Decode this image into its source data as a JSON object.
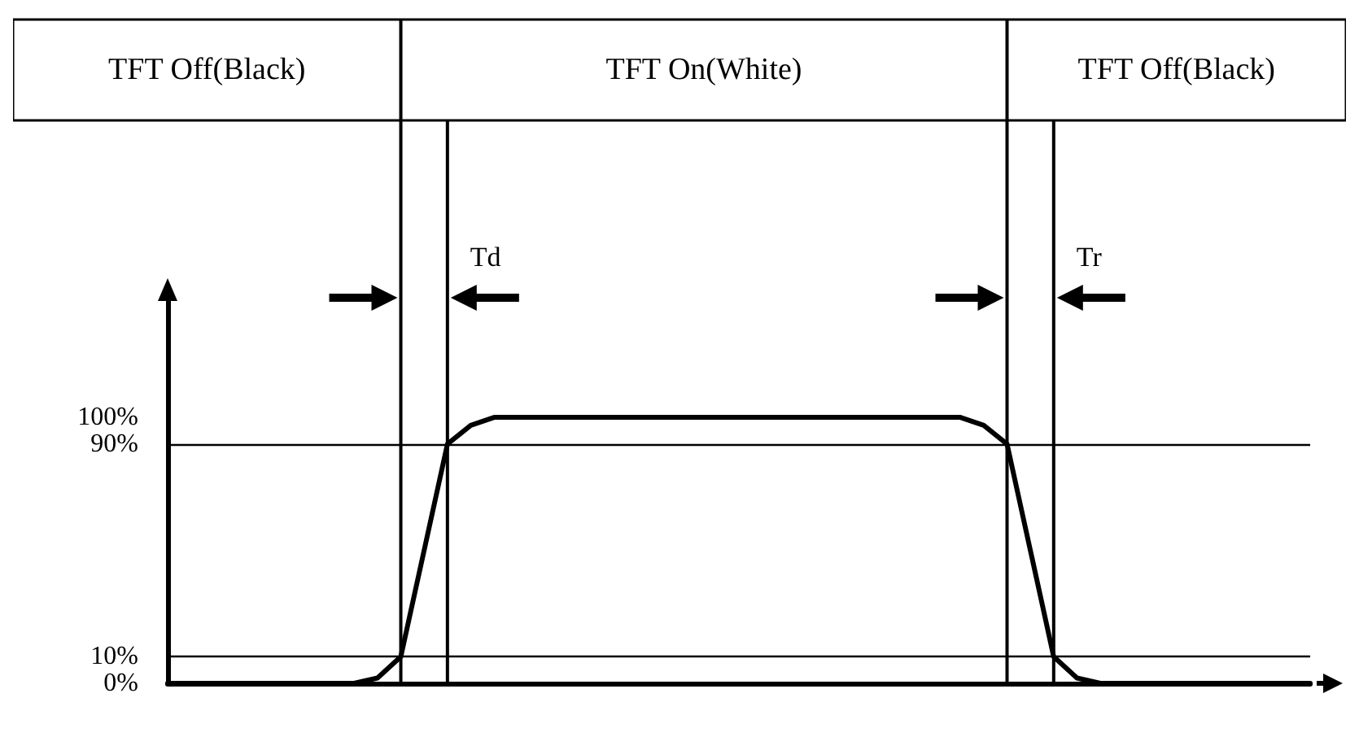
{
  "chart_data": {
    "type": "line",
    "annotations": [
      "TFT Off(Black)",
      "TFT On(White)",
      "TFT Off(Black)",
      "Td",
      "Tr"
    ],
    "categories": [
      null,
      null,
      null,
      null,
      null,
      null,
      null,
      null,
      null,
      null,
      null,
      null,
      null,
      null,
      null,
      null,
      null,
      null,
      null,
      null,
      null,
      null,
      null,
      null,
      null,
      null,
      null,
      null,
      null,
      null,
      null,
      null,
      null,
      null,
      null,
      null,
      null,
      null,
      null,
      null,
      null,
      null,
      null,
      null,
      null,
      null,
      null,
      null,
      null,
      null
    ],
    "series": [
      {
        "color": "#000000",
        "values": [
          0,
          0,
          0,
          0,
          0,
          0,
          0,
          0,
          0,
          2,
          10,
          50,
          90,
          97,
          100,
          100,
          100,
          100,
          100,
          100,
          100,
          100,
          100,
          100,
          100,
          100,
          100,
          100,
          100,
          100,
          100,
          100,
          100,
          100,
          100,
          97,
          90,
          50,
          10,
          2,
          0,
          0,
          0,
          0,
          0,
          0,
          0,
          0,
          0,
          0
        ]
      }
    ],
    "ylim": [
      0,
      145
    ],
    "yticks": [
      {
        "value": 0,
        "label": "0%"
      },
      {
        "value": 10,
        "label": "10%"
      },
      {
        "value": 90,
        "label": "90%"
      },
      {
        "value": 100,
        "label": "100%"
      }
    ],
    "ref_lines": [
      {
        "axis": "y",
        "value": 10,
        "label": null
      },
      {
        "axis": "y",
        "value": 90,
        "label": null
      }
    ],
    "tick_labels": "y",
    "grid": false,
    "marker": "none",
    "line_style": "solid"
  }
}
